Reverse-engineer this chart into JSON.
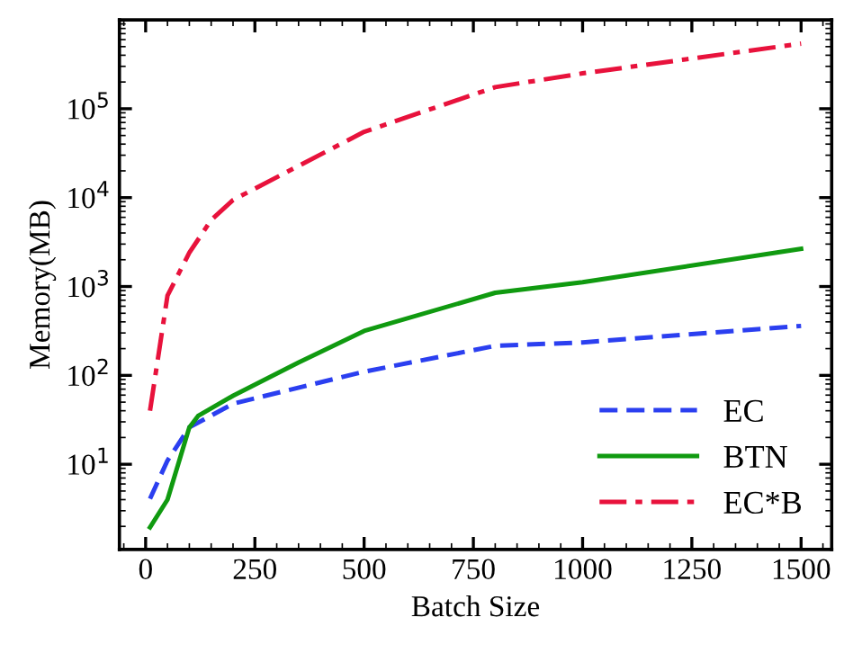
{
  "chart_data": {
    "type": "line",
    "xlabel": "Batch Size",
    "ylabel": "Memory(MB)",
    "log": "y",
    "xlim": [
      -60,
      1570
    ],
    "ylim": [
      1.1,
      1000000
    ],
    "xticks": [
      0,
      250,
      500,
      750,
      1000,
      1250,
      1500
    ],
    "yticks": [
      {
        "value": 10,
        "label": "10$^{1}$"
      },
      {
        "value": 100,
        "label": "10$^{2}$"
      },
      {
        "value": 1000,
        "label": "10$^{3}$"
      },
      {
        "value": 10000,
        "label": "10$^{4}$"
      },
      {
        "value": 100000,
        "label": "10$^{5}$"
      }
    ],
    "legend": "bottom right",
    "grid": false,
    "series": [
      {
        "name": "EC",
        "color": "#2b3ff0",
        "line_style": "dashed",
        "x": [
          10,
          50,
          100,
          200,
          500,
          800,
          1000,
          1500
        ],
        "values": [
          4.1,
          11,
          26,
          48,
          110,
          215,
          235,
          360
        ]
      },
      {
        "name": "BTN",
        "color": "#109a10",
        "line_style": "solid",
        "x": [
          10,
          50,
          100,
          120,
          200,
          350,
          500,
          800,
          1000,
          1500
        ],
        "values": [
          1.95,
          4,
          26,
          35,
          59,
          140,
          316,
          850,
          1120,
          2650
        ]
      },
      {
        "name": "EC*B",
        "color": "#e8123c",
        "line_style": "dashdot",
        "x": [
          10,
          50,
          100,
          150,
          200,
          500,
          800,
          1000,
          1500
        ],
        "values": [
          40,
          790,
          2400,
          5600,
          9400,
          55000,
          175000,
          250000,
          540000
        ]
      }
    ]
  }
}
